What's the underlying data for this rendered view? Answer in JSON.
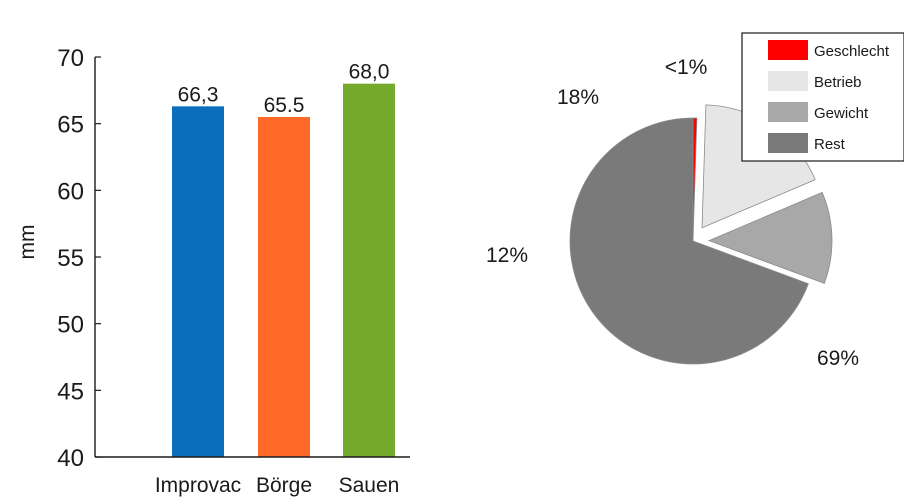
{
  "chart_data": [
    {
      "type": "bar",
      "categories": [
        "Improvac",
        "Börge",
        "Sauen"
      ],
      "values": [
        66.3,
        65.5,
        68.0
      ],
      "value_labels": [
        "66,3",
        "65.5",
        "68,0"
      ],
      "colors": [
        "#0a6ebd",
        "#ff6a2b",
        "#76aa2c"
      ],
      "ylabel": "mm",
      "ylim": [
        40,
        70
      ],
      "yticks": [
        40,
        45,
        50,
        55,
        60,
        65,
        70
      ],
      "ytick_labels": [
        "40",
        "45",
        "50",
        "55",
        "60",
        "65",
        "70"
      ],
      "grid": false
    },
    {
      "type": "pie",
      "slices": [
        {
          "name": "Geschlecht",
          "value": 0.5,
          "label": "<1%",
          "color": "#ff0000"
        },
        {
          "name": "Betrieb",
          "value": 18,
          "label": "18%",
          "color": "#e6e6e6"
        },
        {
          "name": "Gewicht",
          "value": 12,
          "label": "12%",
          "color": "#a8a8a8"
        },
        {
          "name": "Rest",
          "value": 69,
          "label": "69%",
          "color": "#7a7a7a"
        }
      ],
      "exploded": true,
      "legend_position": "top-right"
    }
  ]
}
